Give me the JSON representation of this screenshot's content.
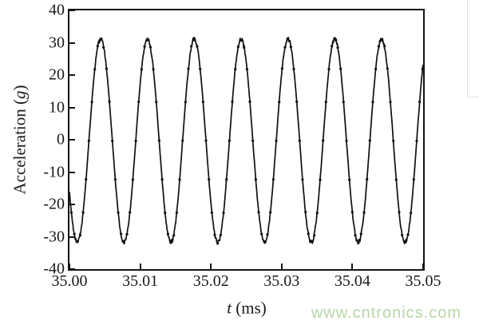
{
  "page": {
    "background": "#ffffff",
    "watermark": "www.cntronics.com",
    "watermark_color": "#b9d7a8"
  },
  "chart_data": {
    "type": "line",
    "title": "",
    "xlabel": "t (ms)",
    "xlabel_parts": {
      "italic": "t",
      "suffix": " (ms)"
    },
    "ylabel": "Acceleration (g)",
    "ylabel_parts": {
      "prefix": "Acceleration (",
      "italic": "g",
      "suffix": ")"
    },
    "xlim": [
      35.0,
      35.05
    ],
    "ylim": [
      -40,
      40
    ],
    "x_tick_values": [
      35.0,
      35.01,
      35.02,
      35.03,
      35.04,
      35.05
    ],
    "x_tick_labels": [
      "35.00",
      "35.01",
      "35.02",
      "35.03",
      "35.04",
      "35.05"
    ],
    "y_tick_values": [
      -40,
      -30,
      -20,
      -10,
      0,
      10,
      20,
      30,
      40
    ],
    "y_tick_labels": [
      "-40",
      "-30",
      "-20",
      "-10",
      "0",
      "10",
      "20",
      "30",
      "40"
    ],
    "grid": false,
    "legend": false,
    "frame": "box",
    "tick_direction": "in",
    "axis_color": "#141414",
    "text_color": "#1a1a1a",
    "series": [
      {
        "name": "acceleration",
        "color": "#101010",
        "marker": "dot",
        "waveform": {
          "shape": "sine",
          "amplitude_g": 31.4,
          "offset_g": -0.3,
          "period_ms": 0.00662,
          "first_trough_ms": 35.0011,
          "cycles_visible": 7.55,
          "peak_g": 31,
          "trough_g": -31.7,
          "samples_per_period": 16,
          "noise_g": 0.7,
          "noise_seed": 9
        }
      }
    ]
  }
}
